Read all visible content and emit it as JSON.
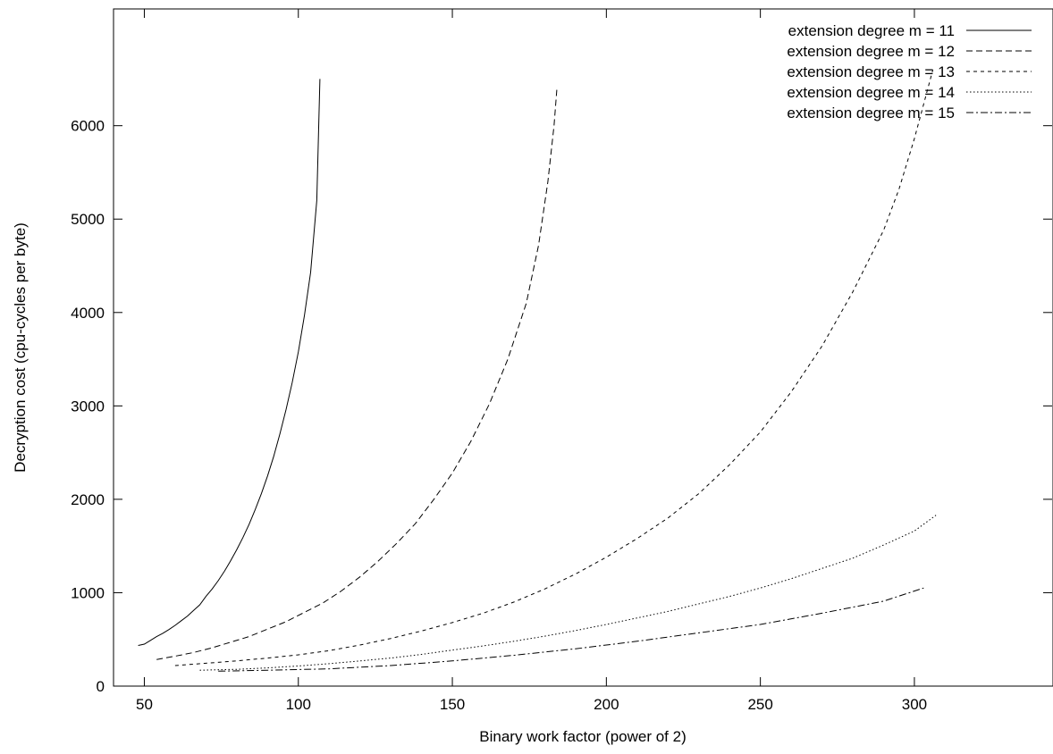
{
  "chart_data": {
    "type": "line",
    "title": "",
    "xlabel": "Binary work factor (power of 2)",
    "ylabel": "Decryption cost (cpu-cycles per byte)",
    "xlim": [
      40,
      345
    ],
    "ylim": [
      0,
      7250
    ],
    "xticks": [
      50,
      100,
      150,
      200,
      250,
      300
    ],
    "yticks": [
      0,
      1000,
      2000,
      3000,
      4000,
      5000,
      6000
    ],
    "grid": false,
    "legend_position": "top-right",
    "series": [
      {
        "name": "extension degree m = 11",
        "dash": "solid",
        "x": [
          48,
          50,
          52,
          54,
          56,
          58,
          60,
          62,
          64,
          66,
          68,
          70,
          72,
          74,
          76,
          78,
          80,
          82,
          84,
          86,
          88,
          90,
          92,
          94,
          96,
          98,
          100,
          102,
          104,
          106,
          107
        ],
        "y": [
          435,
          450,
          490,
          530,
          565,
          605,
          650,
          700,
          750,
          810,
          870,
          960,
          1040,
          1130,
          1230,
          1340,
          1460,
          1590,
          1730,
          1890,
          2060,
          2250,
          2460,
          2700,
          2960,
          3250,
          3580,
          3970,
          4430,
          5200,
          6500
        ]
      },
      {
        "name": "extension degree m = 12",
        "dash": "long-dash",
        "x": [
          54,
          60,
          66,
          72,
          78,
          84,
          90,
          96,
          102,
          108,
          114,
          120,
          126,
          132,
          138,
          144,
          150,
          156,
          162,
          168,
          174,
          178,
          181,
          183,
          184
        ],
        "y": [
          285,
          320,
          360,
          410,
          470,
          530,
          610,
          690,
          790,
          890,
          1020,
          1170,
          1340,
          1530,
          1740,
          2000,
          2280,
          2620,
          3020,
          3500,
          4100,
          4720,
          5400,
          6000,
          6420
        ]
      },
      {
        "name": "extension degree m = 13",
        "dash": "short-dash",
        "x": [
          60,
          70,
          80,
          90,
          100,
          110,
          120,
          130,
          140,
          150,
          160,
          170,
          180,
          190,
          200,
          210,
          220,
          230,
          240,
          250,
          260,
          270,
          280,
          290,
          295,
          300,
          303,
          306
        ],
        "y": [
          220,
          245,
          270,
          300,
          335,
          380,
          440,
          510,
          590,
          680,
          780,
          900,
          1040,
          1200,
          1380,
          1580,
          1800,
          2060,
          2370,
          2720,
          3150,
          3640,
          4220,
          4880,
          5320,
          5860,
          6230,
          6600
        ]
      },
      {
        "name": "extension degree m = 14",
        "dash": "dotted",
        "x": [
          68,
          80,
          90,
          100,
          110,
          120,
          130,
          140,
          150,
          160,
          170,
          180,
          190,
          200,
          210,
          220,
          230,
          240,
          250,
          260,
          270,
          280,
          290,
          300,
          307
        ],
        "y": [
          170,
          180,
          195,
          215,
          240,
          270,
          300,
          340,
          385,
          430,
          480,
          535,
          595,
          660,
          730,
          800,
          880,
          960,
          1050,
          1150,
          1260,
          1370,
          1510,
          1660,
          1830
        ]
      },
      {
        "name": "extension degree m = 15",
        "dash": "dash-dot",
        "x": [
          74,
          90,
          110,
          130,
          150,
          170,
          190,
          210,
          230,
          250,
          270,
          290,
          303
        ],
        "y": [
          160,
          170,
          185,
          220,
          270,
          330,
          400,
          480,
          570,
          660,
          780,
          910,
          1050
        ]
      }
    ]
  }
}
